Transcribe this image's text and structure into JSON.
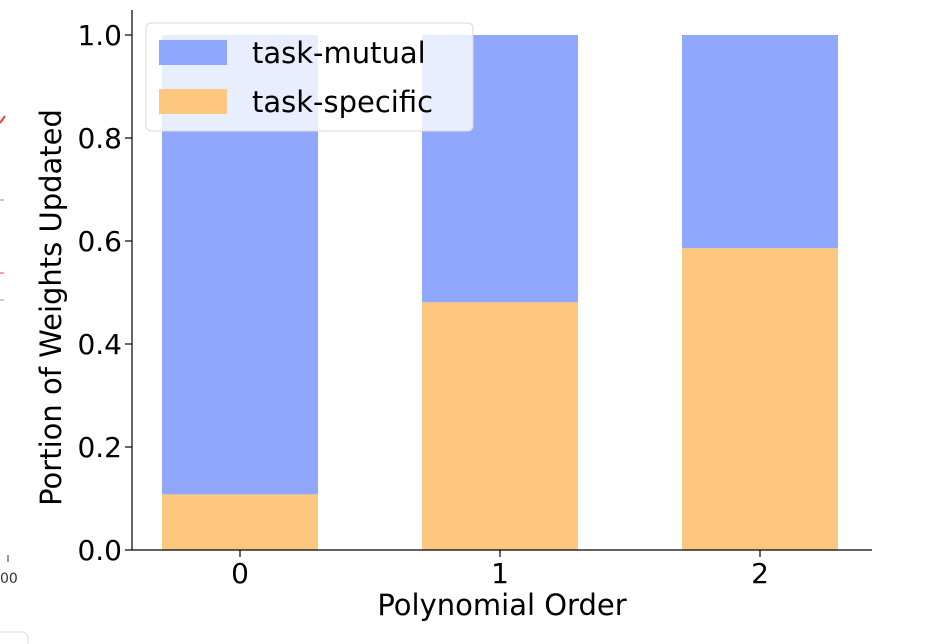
{
  "chart_data": {
    "type": "bar",
    "stacked": true,
    "categories": [
      "0",
      "1",
      "2"
    ],
    "series": [
      {
        "name": "task-specific",
        "values": [
          0.108,
          0.481,
          0.586
        ],
        "color": "#fdc77f"
      },
      {
        "name": "task-mutual",
        "values": [
          0.892,
          0.519,
          0.414
        ],
        "color": "#8fa8fd"
      }
    ],
    "title": "",
    "xlabel": "Polynomial Order",
    "ylabel": "Portion of Weights Updated",
    "ylim": [
      0,
      1.0
    ],
    "yticks": [
      "0.0",
      "0.2",
      "0.4",
      "0.6",
      "0.8",
      "1.0"
    ],
    "grid": false,
    "legend": {
      "placement": "top-left",
      "entries": [
        "task-mutual",
        "task-specific"
      ]
    }
  },
  "edge_fragment": {
    "text": "00"
  }
}
